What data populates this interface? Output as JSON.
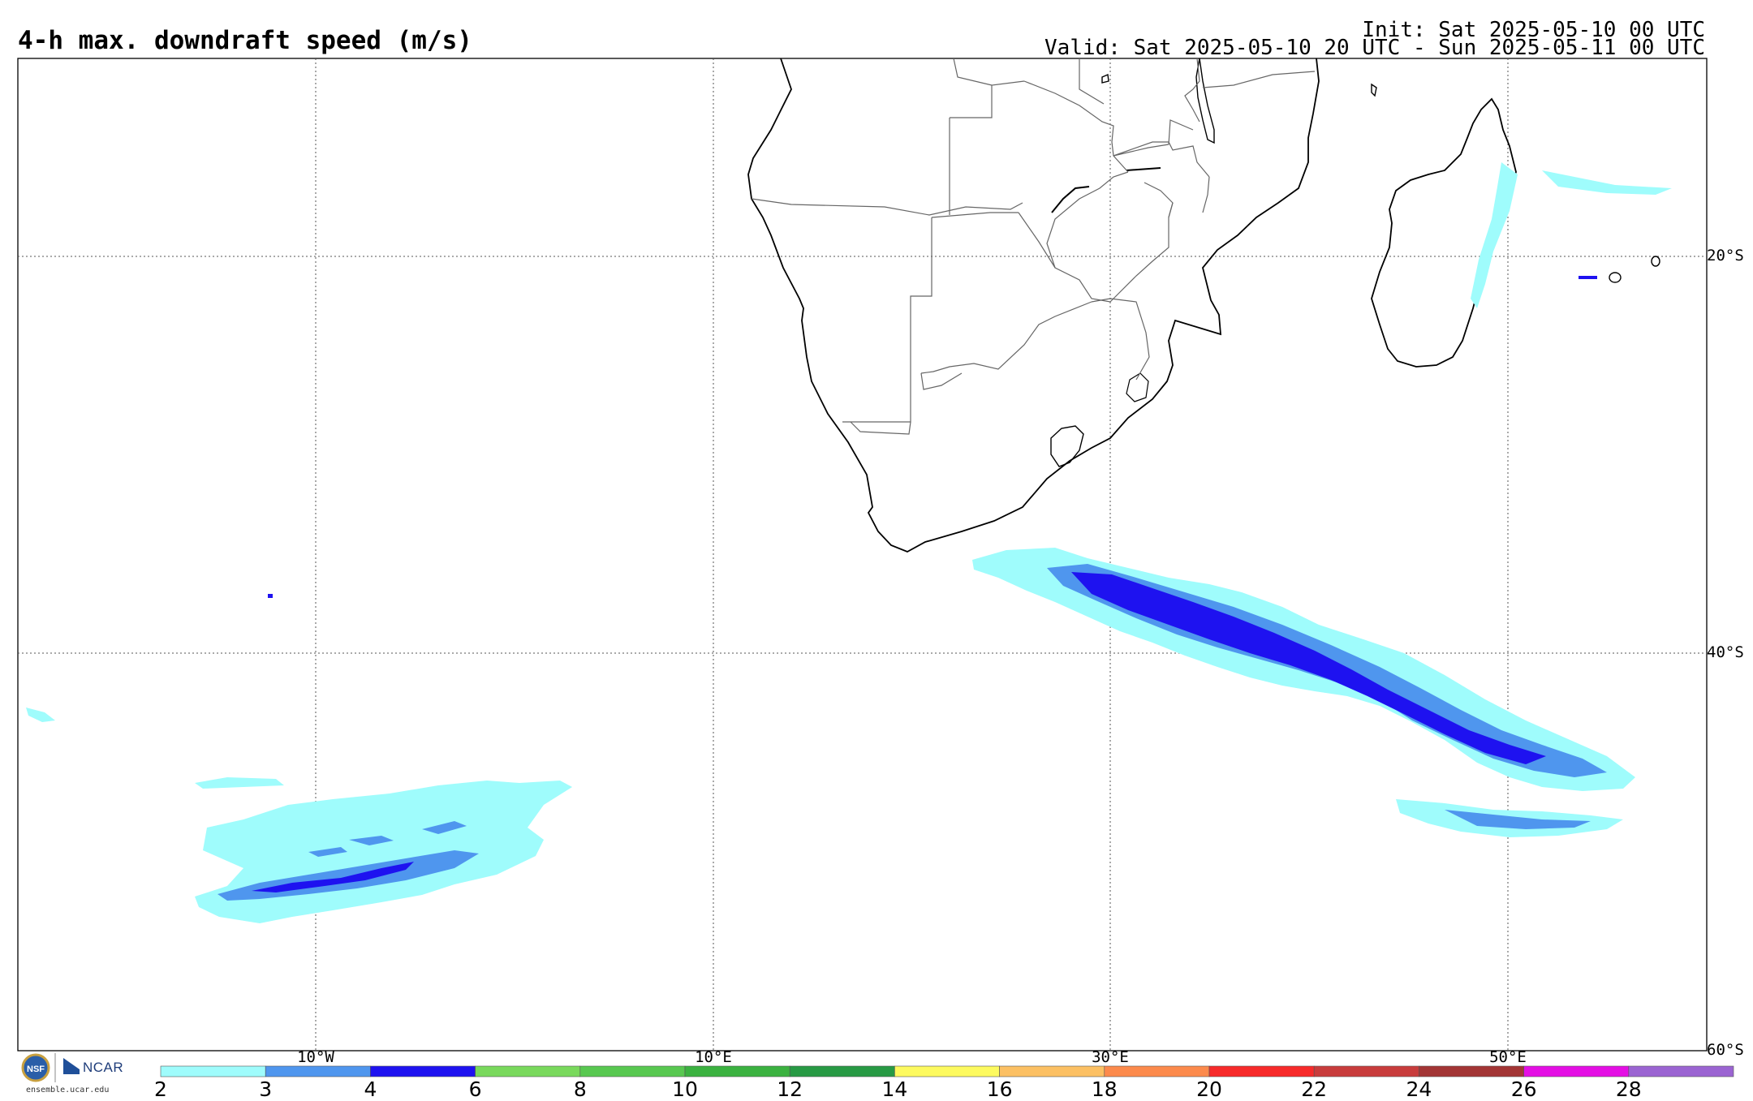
{
  "header": {
    "title": "4-h max. downdraft speed (m/s)",
    "init": "Init: Sat 2025-05-10 00 UTC",
    "valid": "Valid: Sat 2025-05-10 20 UTC - Sun 2025-05-11 00 UTC"
  },
  "map": {
    "lat_labels": [
      "20°S",
      "40°S",
      "60°S"
    ],
    "lon_labels": [
      "10°W",
      "10°E",
      "30°E",
      "50°E"
    ]
  },
  "colorbar": {
    "ticks": [
      "2",
      "3",
      "4",
      "6",
      "8",
      "10",
      "12",
      "14",
      "16",
      "18",
      "20",
      "22",
      "24",
      "26",
      "28"
    ],
    "colors": [
      "#9ffcfc",
      "#4f96ee",
      "#1e12f0",
      "#79d95c",
      "#58c850",
      "#3bb240",
      "#279a44",
      "#fdfa5f",
      "#fcc063",
      "#fc8a4c",
      "#f72a2a",
      "#c83c3c",
      "#a33535",
      "#e40ee4",
      "#9b64d2"
    ]
  },
  "logos": {
    "nsf": "NSF",
    "ncar": "NCAR",
    "site": "ensemble.ucar.edu"
  }
}
